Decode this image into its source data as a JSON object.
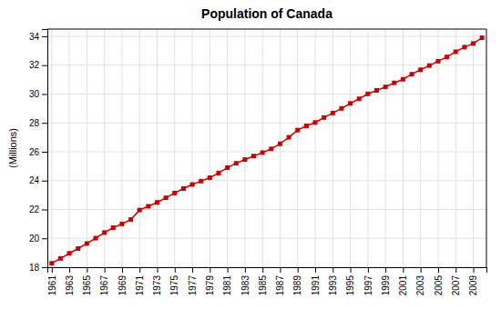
{
  "chart_data": {
    "type": "line",
    "title": "Population of Canada",
    "ylabel": "(Millions)",
    "x": [
      1961,
      1962,
      1963,
      1964,
      1965,
      1966,
      1967,
      1968,
      1969,
      1970,
      1971,
      1972,
      1973,
      1974,
      1975,
      1976,
      1977,
      1978,
      1979,
      1980,
      1981,
      1982,
      1983,
      1984,
      1985,
      1986,
      1987,
      1988,
      1989,
      1990,
      1991,
      1992,
      1993,
      1994,
      1995,
      1996,
      1997,
      1998,
      1999,
      2000,
      2001,
      2002,
      2003,
      2004,
      2005,
      2006,
      2007,
      2008,
      2009,
      2010
    ],
    "values": [
      18.27,
      18.61,
      18.96,
      19.29,
      19.64,
      20.01,
      20.4,
      20.74,
      21.0,
      21.3,
      21.96,
      22.22,
      22.49,
      22.81,
      23.14,
      23.45,
      23.73,
      23.96,
      24.2,
      24.52,
      24.9,
      25.2,
      25.46,
      25.7,
      25.94,
      26.2,
      26.55,
      27.0,
      27.5,
      27.79,
      28.03,
      28.37,
      28.68,
      29.0,
      29.35,
      29.67,
      30.01,
      30.25,
      30.49,
      30.77,
      31.02,
      31.37,
      31.68,
      31.97,
      32.27,
      32.57,
      32.93,
      33.25,
      33.5,
      33.9
    ],
    "color": "#cc0000",
    "marker": "square",
    "xlim": [
      1960.5,
      2010.5
    ],
    "xticks": [
      1961,
      1963,
      1965,
      1967,
      1969,
      1971,
      1973,
      1975,
      1977,
      1979,
      1981,
      1983,
      1985,
      1987,
      1989,
      1991,
      1993,
      1995,
      1997,
      1999,
      2001,
      2003,
      2005,
      2007,
      2009
    ],
    "ylim": [
      18,
      34.5
    ],
    "yticks": [
      18,
      20,
      22,
      24,
      26,
      28,
      30,
      32,
      34
    ],
    "grid": true
  }
}
